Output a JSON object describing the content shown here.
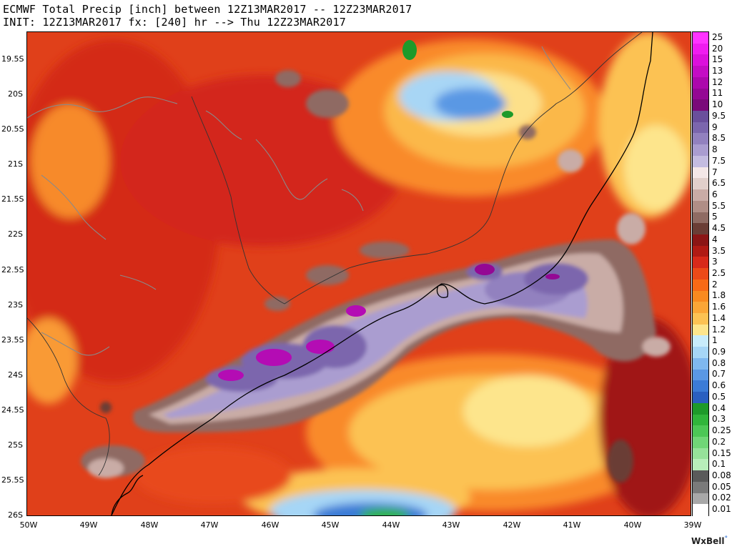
{
  "header": {
    "line1": "ECMWF Total Precip [inch] between 12Z13MAR2017 -- 12Z23MAR2017",
    "line2": "INIT: 12Z13MAR2017 fx: [240] hr --> Thu 12Z23MAR2017"
  },
  "axes": {
    "lat_labels": [
      "19.5S",
      "20S",
      "20.5S",
      "21S",
      "21.5S",
      "22S",
      "22.5S",
      "23S",
      "23.5S",
      "24S",
      "24.5S",
      "25S",
      "25.5S",
      "26S"
    ],
    "lon_labels": [
      "50W",
      "49W",
      "48W",
      "47W",
      "46W",
      "45W",
      "44W",
      "43W",
      "42W",
      "41W",
      "40W",
      "39W"
    ]
  },
  "legend": {
    "items": [
      {
        "label": "25",
        "color": "#ff33ff"
      },
      {
        "label": "20",
        "color": "#f01cf0"
      },
      {
        "label": "15",
        "color": "#dc10dc"
      },
      {
        "label": "13",
        "color": "#c40cc4"
      },
      {
        "label": "12",
        "color": "#ac08ac"
      },
      {
        "label": "11",
        "color": "#940894"
      },
      {
        "label": "10",
        "color": "#7a0a7a"
      },
      {
        "label": "9.5",
        "color": "#6a4f9c"
      },
      {
        "label": "9",
        "color": "#7b66ad"
      },
      {
        "label": "8.5",
        "color": "#9281bf"
      },
      {
        "label": "8",
        "color": "#aa9dd0"
      },
      {
        "label": "7.5",
        "color": "#c4bce0"
      },
      {
        "label": "7",
        "color": "#f4e7e7"
      },
      {
        "label": "6.5",
        "color": "#e1cfcb"
      },
      {
        "label": "6",
        "color": "#c9aca6"
      },
      {
        "label": "5.5",
        "color": "#b08e86"
      },
      {
        "label": "5",
        "color": "#8f6b63"
      },
      {
        "label": "4.5",
        "color": "#6a3d35"
      },
      {
        "label": "4",
        "color": "#8b1515"
      },
      {
        "label": "3.5",
        "color": "#b01a14"
      },
      {
        "label": "3",
        "color": "#d8291a"
      },
      {
        "label": "2.5",
        "color": "#ec4a18"
      },
      {
        "label": "2",
        "color": "#f76a16"
      },
      {
        "label": "1.8",
        "color": "#f98a1f"
      },
      {
        "label": "1.6",
        "color": "#fba636"
      },
      {
        "label": "1.4",
        "color": "#fcc253"
      },
      {
        "label": "1.2",
        "color": "#fde58c"
      },
      {
        "label": "1",
        "color": "#c8ecfb"
      },
      {
        "label": "0.9",
        "color": "#a6d6f6"
      },
      {
        "label": "0.8",
        "color": "#7fb8ef"
      },
      {
        "label": "0.7",
        "color": "#5a98e4"
      },
      {
        "label": "0.6",
        "color": "#3b7bd6"
      },
      {
        "label": "0.5",
        "color": "#2a5fc0"
      },
      {
        "label": "0.4",
        "color": "#1e9a2a"
      },
      {
        "label": "0.3",
        "color": "#30b53b"
      },
      {
        "label": "0.25",
        "color": "#4cc756"
      },
      {
        "label": "0.2",
        "color": "#70d677"
      },
      {
        "label": "0.15",
        "color": "#96e29a"
      },
      {
        "label": "0.1",
        "color": "#b8eeba"
      },
      {
        "label": "0.08",
        "color": "#5a5a5a"
      },
      {
        "label": "0.05",
        "color": "#7a7a7a"
      },
      {
        "label": "0.02",
        "color": "#a8a8a8"
      },
      {
        "label": "0.01",
        "color": "#ffffff"
      }
    ]
  },
  "brand": {
    "name": "WxBell",
    "mark": "°"
  }
}
